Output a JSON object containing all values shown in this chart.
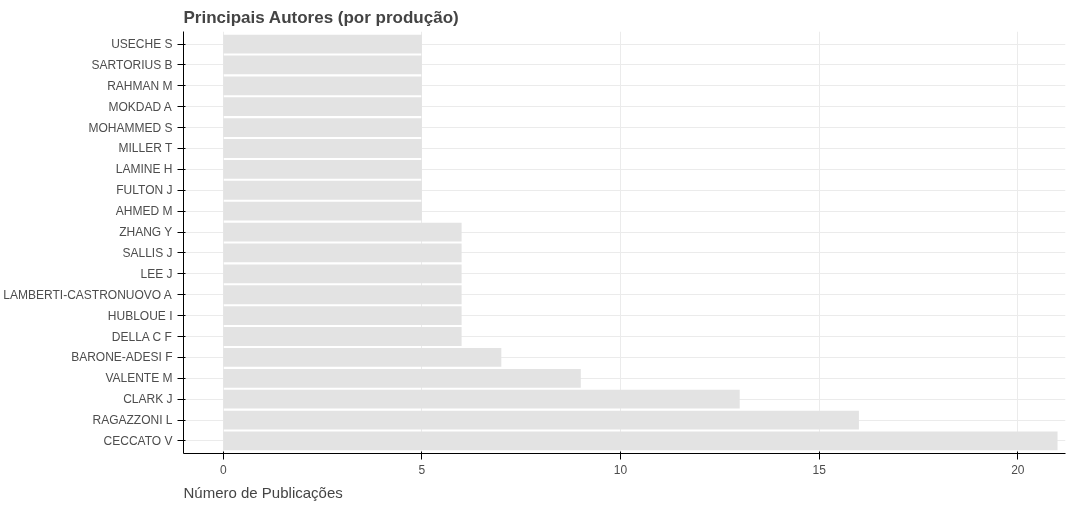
{
  "chart_data": {
    "type": "bar",
    "orientation": "horizontal",
    "title": "Principais Autores (por produção)",
    "xlabel": "Número de Publicações",
    "categories": [
      "USECHE S",
      "SARTORIUS B",
      "RAHMAN M",
      "MOKDAD A",
      "MOHAMMED S",
      "MILLER T",
      "LAMINE H",
      "FULTON J",
      "AHMED M",
      "ZHANG Y",
      "SALLIS J",
      "LEE J",
      "LAMBERTI-CASTRONUOVO A",
      "HUBLOUE I",
      "DELLA C F",
      "BARONE-ADESI F",
      "VALENTE M",
      "CLARK J",
      "RAGAZZONI L",
      "CECCATO V"
    ],
    "values": [
      5,
      5,
      5,
      5,
      5,
      5,
      5,
      5,
      5,
      6,
      6,
      6,
      6,
      6,
      6,
      7,
      9,
      13,
      16,
      21
    ],
    "color": "#e3e3e3",
    "xlim": [
      -1,
      21.2
    ],
    "xticks": [
      0,
      5,
      10,
      15,
      20
    ],
    "grid": true
  }
}
